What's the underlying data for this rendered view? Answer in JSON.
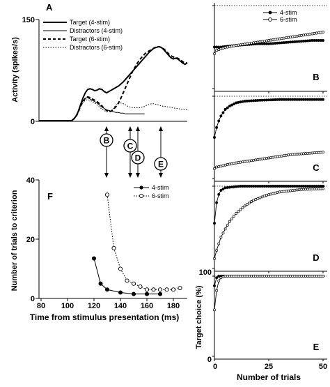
{
  "chart_data": [
    {
      "panel": "A",
      "type": "line",
      "ylabel": "Activity (spikes/s)",
      "ylim": [
        0,
        150
      ],
      "yticks": [
        0,
        150
      ],
      "series": [
        {
          "name": "Target (4-stim)",
          "style": "solid-thick",
          "x": [
            0,
            30,
            55,
            58,
            62,
            66,
            70,
            74,
            78,
            82,
            86,
            90,
            94,
            98,
            102,
            106,
            110,
            114,
            118,
            122,
            126,
            130,
            134,
            138,
            142,
            146,
            150,
            154,
            158,
            162,
            166,
            170,
            174,
            178,
            182,
            186,
            190,
            194,
            198,
            202,
            206,
            210,
            214,
            218,
            222,
            226,
            230,
            234,
            238,
            242,
            246,
            250
          ],
          "y": [
            1,
            1,
            1,
            3,
            7,
            14,
            24,
            34,
            42,
            47,
            48,
            47,
            45,
            46,
            48,
            47,
            44,
            42,
            44,
            46,
            48,
            50,
            52,
            55,
            58,
            62,
            66,
            70,
            74,
            78,
            82,
            86,
            90,
            94,
            98,
            102,
            105,
            108,
            109,
            110,
            109,
            106,
            102,
            98,
            94,
            92,
            93,
            92,
            89,
            86,
            84,
            86
          ]
        },
        {
          "name": "Distractors (4-stim)",
          "style": "solid-thin",
          "x": [
            0,
            30,
            55,
            58,
            62,
            66,
            70,
            74,
            78,
            82,
            86,
            90,
            94,
            98,
            102,
            106,
            110,
            114,
            118,
            122,
            126,
            130,
            134,
            138,
            142,
            146,
            150,
            154,
            158,
            162,
            166,
            170,
            174,
            178
          ],
          "y": [
            1,
            1,
            1,
            3,
            7,
            14,
            24,
            30,
            34,
            35,
            33,
            31,
            29,
            27,
            24,
            21,
            19,
            17,
            16,
            15,
            14,
            13,
            13,
            12,
            12,
            11,
            11,
            11,
            11,
            11,
            11,
            11,
            11,
            11
          ]
        },
        {
          "name": "Target (6-stim)",
          "style": "dashed-thick",
          "x": [
            0,
            30,
            55,
            58,
            62,
            66,
            70,
            74,
            78,
            82,
            86,
            90,
            94,
            98,
            102,
            106,
            110,
            114,
            118,
            122,
            126,
            130,
            134,
            138,
            142,
            146,
            150,
            154,
            158,
            162,
            166,
            170,
            174,
            178,
            182,
            186,
            190,
            194,
            198,
            202,
            206,
            210,
            214,
            218,
            222,
            226,
            230,
            234,
            238,
            242,
            246,
            250
          ],
          "y": [
            1,
            1,
            1,
            3,
            6,
            13,
            22,
            29,
            34,
            36,
            35,
            33,
            31,
            29,
            26,
            23,
            19,
            16,
            14,
            15,
            18,
            22,
            27,
            34,
            42,
            50,
            58,
            66,
            74,
            80,
            86,
            91,
            95,
            99,
            102,
            104,
            106,
            108,
            110,
            110,
            109,
            107,
            104,
            100,
            97,
            95,
            94,
            93,
            91,
            88,
            86,
            86
          ]
        },
        {
          "name": "Distractors (6-stim)",
          "style": "dotted",
          "x": [
            0,
            30,
            55,
            58,
            62,
            66,
            70,
            74,
            78,
            82,
            86,
            90,
            94,
            98,
            102,
            106,
            110,
            114,
            118,
            122,
            126,
            130,
            134,
            138,
            142,
            146,
            150,
            154,
            158,
            162,
            166,
            170,
            174,
            178,
            182,
            186,
            190,
            194,
            198,
            202,
            206,
            210,
            214,
            218,
            222,
            226,
            230,
            234,
            238,
            242,
            246,
            250
          ],
          "y": [
            1,
            1,
            1,
            3,
            6,
            13,
            22,
            27,
            31,
            32,
            31,
            29,
            27,
            24,
            21,
            18,
            16,
            14,
            14,
            16,
            20,
            24,
            26,
            27,
            26,
            24,
            22,
            21,
            20,
            20,
            20,
            20,
            21,
            22,
            24,
            25,
            26,
            26,
            25,
            24,
            23,
            22,
            22,
            21,
            21,
            20,
            19,
            19,
            18,
            18,
            17,
            17
          ]
        }
      ],
      "legend": "top-left",
      "markers": [
        "B",
        "C",
        "D",
        "E"
      ]
    },
    {
      "panel": "F",
      "type": "line",
      "xlabel": "Time from stimulus presentation (ms)",
      "ylabel": "Number of trials to criterion",
      "xlim": [
        80,
        190
      ],
      "ylim": [
        0,
        40
      ],
      "xticks": [
        80,
        100,
        120,
        140,
        160,
        180
      ],
      "yticks": [
        0,
        20,
        40
      ],
      "legend": "top-right",
      "series": [
        {
          "name": "4-stim",
          "marker": "filled",
          "style": "solid",
          "x": [
            120,
            125,
            130,
            140,
            150,
            160,
            170
          ],
          "y": [
            13.5,
            5,
            3,
            2,
            1.5,
            1.5,
            1.5
          ]
        },
        {
          "name": "6-stim",
          "marker": "open",
          "style": "dotted",
          "x": [
            130,
            135,
            140,
            145,
            150,
            155,
            160,
            165,
            170,
            175,
            180,
            185
          ],
          "y": [
            35,
            17,
            10,
            6,
            5,
            4,
            3,
            3,
            3,
            3,
            3,
            3.5
          ]
        }
      ]
    },
    {
      "panel": "B",
      "type": "line",
      "xlim": [
        0,
        50
      ],
      "ylim": [
        0,
        100
      ],
      "legend": "top-right",
      "series": [
        {
          "name": "4-stim",
          "marker": "filled",
          "points": [
            [
              0,
              0.5
            ],
            [
              1,
              0.5
            ],
            [
              3,
              0.5
            ],
            [
              6,
              0.51
            ],
            [
              10,
              0.52
            ],
            [
              15,
              0.53
            ],
            [
              20,
              0.54
            ],
            [
              25,
              0.54
            ],
            [
              30,
              0.55
            ],
            [
              35,
              0.56
            ],
            [
              40,
              0.57
            ],
            [
              45,
              0.58
            ],
            [
              50,
              0.58
            ]
          ]
        },
        {
          "name": "6-stim",
          "marker": "open",
          "points": [
            [
              0,
              0.42
            ],
            [
              1,
              0.46
            ],
            [
              3,
              0.48
            ],
            [
              6,
              0.5
            ],
            [
              10,
              0.52
            ],
            [
              15,
              0.54
            ],
            [
              20,
              0.56
            ],
            [
              25,
              0.58
            ],
            [
              30,
              0.6
            ],
            [
              35,
              0.62
            ],
            [
              40,
              0.64
            ],
            [
              45,
              0.66
            ],
            [
              50,
              0.68
            ]
          ]
        }
      ]
    },
    {
      "panel": "C",
      "type": "line",
      "xlim": [
        0,
        50
      ],
      "ylim": [
        0,
        100
      ],
      "series": [
        {
          "name": "4-stim",
          "marker": "filled",
          "points": [
            [
              0,
              0.5
            ],
            [
              1,
              0.62
            ],
            [
              2,
              0.7
            ],
            [
              3,
              0.76
            ],
            [
              4,
              0.8
            ],
            [
              5,
              0.84
            ],
            [
              7,
              0.88
            ],
            [
              10,
              0.92
            ],
            [
              14,
              0.94
            ],
            [
              20,
              0.95
            ],
            [
              30,
              0.96
            ],
            [
              40,
              0.96
            ],
            [
              50,
              0.96
            ]
          ]
        },
        {
          "name": "6-stim",
          "marker": "open",
          "points": [
            [
              0,
              0.12
            ],
            [
              1,
              0.14
            ],
            [
              3,
              0.15
            ],
            [
              6,
              0.17
            ],
            [
              10,
              0.19
            ],
            [
              15,
              0.21
            ],
            [
              20,
              0.23
            ],
            [
              25,
              0.25
            ],
            [
              30,
              0.27
            ],
            [
              35,
              0.29
            ],
            [
              40,
              0.3
            ],
            [
              45,
              0.31
            ],
            [
              50,
              0.32
            ]
          ]
        }
      ]
    },
    {
      "panel": "D",
      "type": "line",
      "xlim": [
        0,
        50
      ],
      "ylim": [
        0,
        100
      ],
      "series": [
        {
          "name": "4-stim",
          "marker": "filled",
          "points": [
            [
              0,
              0.55
            ],
            [
              1,
              0.8
            ],
            [
              2,
              0.9
            ],
            [
              3,
              0.95
            ],
            [
              5,
              0.98
            ],
            [
              8,
              0.99
            ],
            [
              12,
              1.0
            ],
            [
              20,
              1.0
            ],
            [
              30,
              1.0
            ],
            [
              50,
              1.0
            ]
          ]
        },
        {
          "name": "6-stim",
          "marker": "open",
          "points": [
            [
              0,
              0.12
            ],
            [
              1,
              0.22
            ],
            [
              2,
              0.3
            ],
            [
              3,
              0.38
            ],
            [
              5,
              0.48
            ],
            [
              7,
              0.57
            ],
            [
              10,
              0.67
            ],
            [
              14,
              0.76
            ],
            [
              18,
              0.83
            ],
            [
              24,
              0.89
            ],
            [
              30,
              0.93
            ],
            [
              40,
              0.96
            ],
            [
              50,
              0.97
            ]
          ]
        }
      ]
    },
    {
      "panel": "E",
      "type": "line",
      "xlabel": "Number of trials",
      "ylabel": "Target choice (%)",
      "xlim": [
        0,
        50
      ],
      "ylim": [
        0,
        100
      ],
      "xticks": [
        0,
        25,
        50
      ],
      "yticks": [
        0,
        100
      ],
      "series": [
        {
          "name": "4-stim",
          "marker": "filled",
          "points": [
            [
              0,
              0.88
            ],
            [
              1,
              0.98
            ],
            [
              2,
              1.0
            ],
            [
              5,
              1.0
            ],
            [
              10,
              1.0
            ],
            [
              20,
              1.0
            ],
            [
              30,
              1.0
            ],
            [
              50,
              1.0
            ]
          ]
        },
        {
          "name": "6-stim",
          "marker": "open",
          "points": [
            [
              0,
              0.58
            ],
            [
              1,
              0.82
            ],
            [
              2,
              0.94
            ],
            [
              3,
              0.98
            ],
            [
              5,
              1.0
            ],
            [
              10,
              1.0
            ],
            [
              20,
              1.0
            ],
            [
              30,
              1.0
            ],
            [
              50,
              1.0
            ]
          ]
        }
      ]
    }
  ],
  "labels": {
    "A": "A",
    "B": "B",
    "C": "C",
    "D": "D",
    "E": "E",
    "F": "F"
  },
  "legend": {
    "a1": "Target (4-stim)",
    "a2": "Distractors (4-stim)",
    "a3": "Target (6-stim)",
    "a4": "Distractors (6-stim)",
    "s1": "4-stim",
    "s2": "6-stim"
  },
  "axes": {
    "a_ylabel": "Activity (spikes/s)",
    "a_y150": "150",
    "a_y0": "0",
    "f_xlabel": "Time from stimulus presentation (ms)",
    "f_ylabel": "Number of trials to criterion",
    "f_y40": "40",
    "f_y20": "20",
    "f_y0": "0",
    "f_x80": "80",
    "f_x100": "100",
    "f_x120": "120",
    "f_x140": "140",
    "f_x160": "160",
    "f_x180": "180",
    "r_xlabel": "Number of trials",
    "r_ylabel": "Target choice (%)",
    "r_y100": "100",
    "r_y0": "0",
    "r_x0": "0",
    "r_x25": "25",
    "r_x50": "50"
  }
}
